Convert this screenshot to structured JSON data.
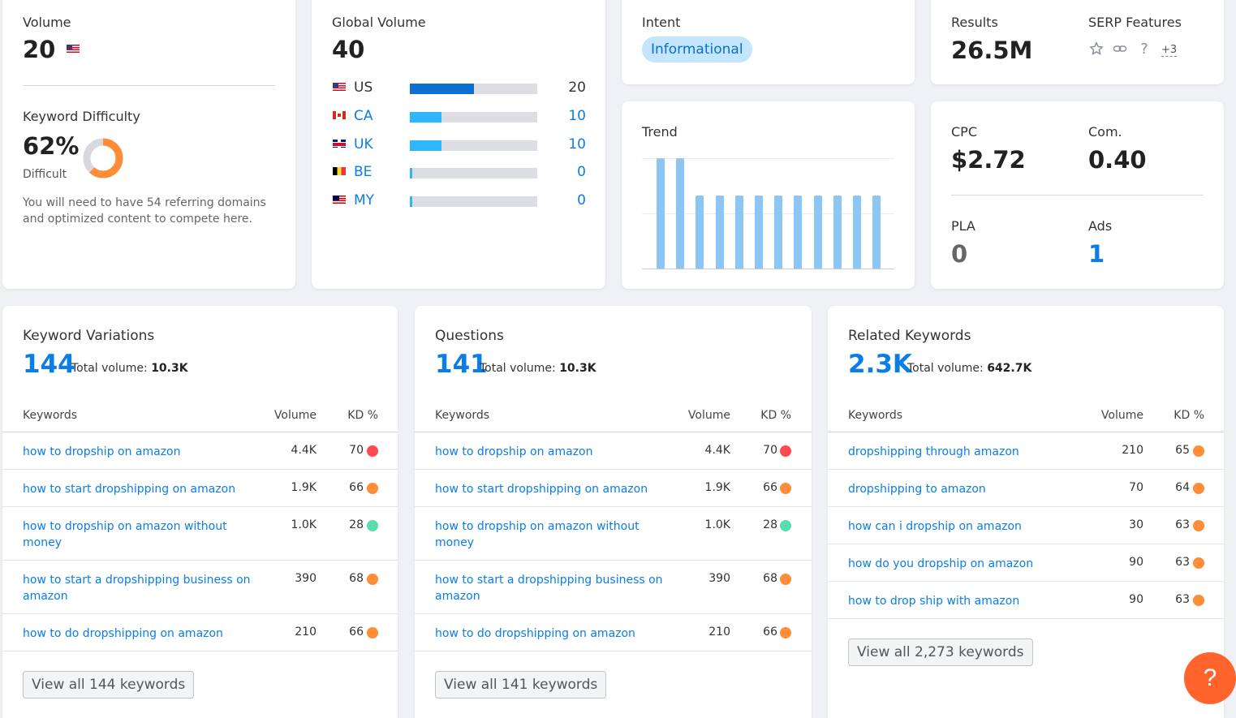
{
  "volume": {
    "label": "Volume",
    "value": "20",
    "flag_icon": "us-flag-icon"
  },
  "keyword_difficulty": {
    "label": "Keyword Difficulty",
    "value": "62%",
    "level": "Difficult",
    "percent": 62,
    "description_line1": "You will need to have 54 referring domains",
    "description_line2": "and optimized content to compete here.",
    "colors": {
      "fill": "#ff8c36",
      "track": "#d7d9de"
    }
  },
  "global_volume": {
    "label": "Global Volume",
    "value": "40",
    "countries": [
      {
        "code": "US",
        "value": "20",
        "share": 0.5,
        "fill_color": "#0d6fd1",
        "code_color": "#333333",
        "num_color": "#333333",
        "flag": "us-flag-icon"
      },
      {
        "code": "CA",
        "value": "10",
        "share": 0.25,
        "fill_color": "#2eb6ff",
        "code_color": "#0a7ee6",
        "num_color": "#0a7ee6",
        "flag": "ca-flag-icon"
      },
      {
        "code": "UK",
        "value": "10",
        "share": 0.25,
        "fill_color": "#2eb6ff",
        "code_color": "#0a7ee6",
        "num_color": "#0a7ee6",
        "flag": "uk-flag-icon"
      },
      {
        "code": "BE",
        "value": "0",
        "share": 0.02,
        "fill_color": "#2eb6ff",
        "code_color": "#0a7ee6",
        "num_color": "#0a7ee6",
        "flag": "be-flag-icon"
      },
      {
        "code": "MY",
        "value": "0",
        "share": 0.02,
        "fill_color": "#2eb6ff",
        "code_color": "#0a7ee6",
        "num_color": "#0a7ee6",
        "flag": "my-flag-icon"
      }
    ]
  },
  "intent": {
    "label": "Intent",
    "value": "Informational"
  },
  "results": {
    "label": "Results",
    "value": "26.5M"
  },
  "serp_features": {
    "label": "SERP Features",
    "icons": [
      "star-icon",
      "link-icon",
      "question-icon"
    ],
    "more": "+3"
  },
  "trend": {
    "label": "Trend",
    "chart_data": {
      "type": "bar",
      "values": [
        1.0,
        1.0,
        0.66,
        0.66,
        0.66,
        0.66,
        0.66,
        0.66,
        0.66,
        0.66,
        0.66,
        0.66
      ],
      "ylim": [
        0,
        1
      ],
      "grid": true,
      "color": "#8cc6f4"
    }
  },
  "cpc": {
    "label": "CPC",
    "value": "$2.72"
  },
  "com": {
    "label": "Com.",
    "value": "0.40"
  },
  "pla": {
    "label": "PLA",
    "value": "0"
  },
  "ads": {
    "label": "Ads",
    "value": "1"
  },
  "table_headers": {
    "keywords": "Keywords",
    "volume": "Volume",
    "kd": "KD %"
  },
  "total_volume_label": "Total volume:",
  "dot_colors": {
    "red": "#ff4953",
    "orange": "#ff8c36",
    "green": "#59ddaa"
  },
  "keyword_variations": {
    "title": "Keyword Variations",
    "count": "144",
    "total_volume": "10.3K",
    "rows": [
      {
        "keyword": "how to dropship on amazon",
        "volume": "4.4K",
        "kd": "70",
        "dot": "red"
      },
      {
        "keyword": "how to start dropshipping on amazon",
        "volume": "1.9K",
        "kd": "66",
        "dot": "orange"
      },
      {
        "keyword": "how to dropship on amazon without money",
        "volume": "1.0K",
        "kd": "28",
        "dot": "green"
      },
      {
        "keyword": "how to start a dropshipping business on amazon",
        "volume": "390",
        "kd": "68",
        "dot": "orange"
      },
      {
        "keyword": "how to do dropshipping on amazon",
        "volume": "210",
        "kd": "66",
        "dot": "orange"
      }
    ],
    "view_all": "View all 144 keywords"
  },
  "questions": {
    "title": "Questions",
    "count": "141",
    "total_volume": "10.3K",
    "rows": [
      {
        "keyword": "how to dropship on amazon",
        "volume": "4.4K",
        "kd": "70",
        "dot": "red"
      },
      {
        "keyword": "how to start dropshipping on amazon",
        "volume": "1.9K",
        "kd": "66",
        "dot": "orange"
      },
      {
        "keyword": "how to dropship on amazon without money",
        "volume": "1.0K",
        "kd": "28",
        "dot": "green"
      },
      {
        "keyword": "how to start a dropshipping business on amazon",
        "volume": "390",
        "kd": "68",
        "dot": "orange"
      },
      {
        "keyword": "how to do dropshipping on amazon",
        "volume": "210",
        "kd": "66",
        "dot": "orange"
      }
    ],
    "view_all": "View all 141 keywords"
  },
  "related_keywords": {
    "title": "Related Keywords",
    "count": "2.3K",
    "total_volume": "642.7K",
    "rows": [
      {
        "keyword": "dropshipping through amazon",
        "volume": "210",
        "kd": "65",
        "dot": "orange"
      },
      {
        "keyword": "dropshipping to amazon",
        "volume": "70",
        "kd": "64",
        "dot": "orange"
      },
      {
        "keyword": "how can i dropship on amazon",
        "volume": "30",
        "kd": "63",
        "dot": "orange"
      },
      {
        "keyword": "how do you dropship on amazon",
        "volume": "90",
        "kd": "63",
        "dot": "orange"
      },
      {
        "keyword": "how to drop ship with amazon",
        "volume": "90",
        "kd": "63",
        "dot": "orange"
      }
    ],
    "view_all": "View all 2,273 keywords"
  },
  "help_button": {
    "label": "?",
    "color": "#ff642d"
  }
}
